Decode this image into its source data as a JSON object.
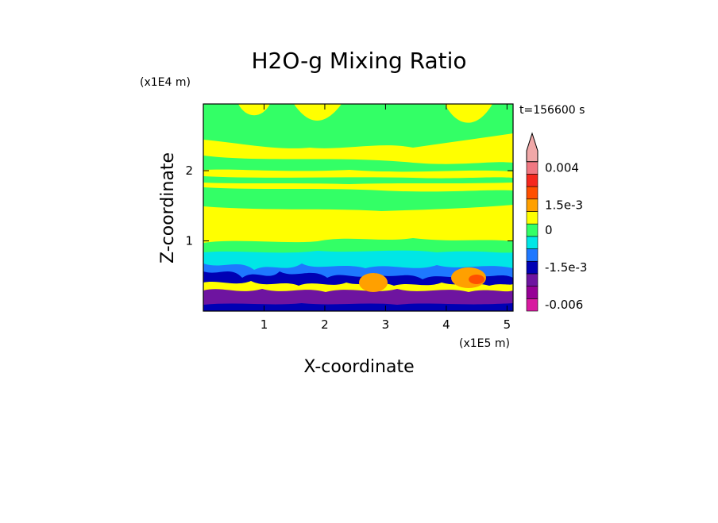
{
  "chart_data": {
    "type": "heatmap",
    "title": "H2O-g Mixing Ratio",
    "xlabel": "X-coordinate",
    "ylabel": "Z-coordinate",
    "x_unit": "(x1E5 m)",
    "y_unit": "(x1E4 m)",
    "time_label": "t=156600 s",
    "xlim": [
      0,
      5.1
    ],
    "ylim": [
      0,
      2.95
    ],
    "x_ticks": [
      {
        "value": 1,
        "label": "1"
      },
      {
        "value": 2,
        "label": "2"
      },
      {
        "value": 3,
        "label": "3"
      },
      {
        "value": 4,
        "label": "4"
      },
      {
        "value": 5,
        "label": "5"
      }
    ],
    "y_ticks": [
      {
        "value": 1,
        "label": "1"
      },
      {
        "value": 2,
        "label": "2"
      }
    ],
    "colorbar": {
      "levels": [
        {
          "color": "#d81aa0",
          "label": "-0.006"
        },
        {
          "color": "#960096",
          "label": ""
        },
        {
          "color": "#6e14a0",
          "label": ""
        },
        {
          "color": "#0000b4",
          "label": "-1.5e-3"
        },
        {
          "color": "#1e78ff",
          "label": ""
        },
        {
          "color": "#00e6e6",
          "label": ""
        },
        {
          "color": "#33ff66",
          "label": "0"
        },
        {
          "color": "#ffff00",
          "label": ""
        },
        {
          "color": "#ffa000",
          "label": "1.5e-3"
        },
        {
          "color": "#ff5000",
          "label": ""
        },
        {
          "color": "#f5281e",
          "label": ""
        },
        {
          "color": "#f07882",
          "label": "0.004"
        },
        {
          "color": "#f0a8a8",
          "label": ""
        }
      ]
    }
  }
}
